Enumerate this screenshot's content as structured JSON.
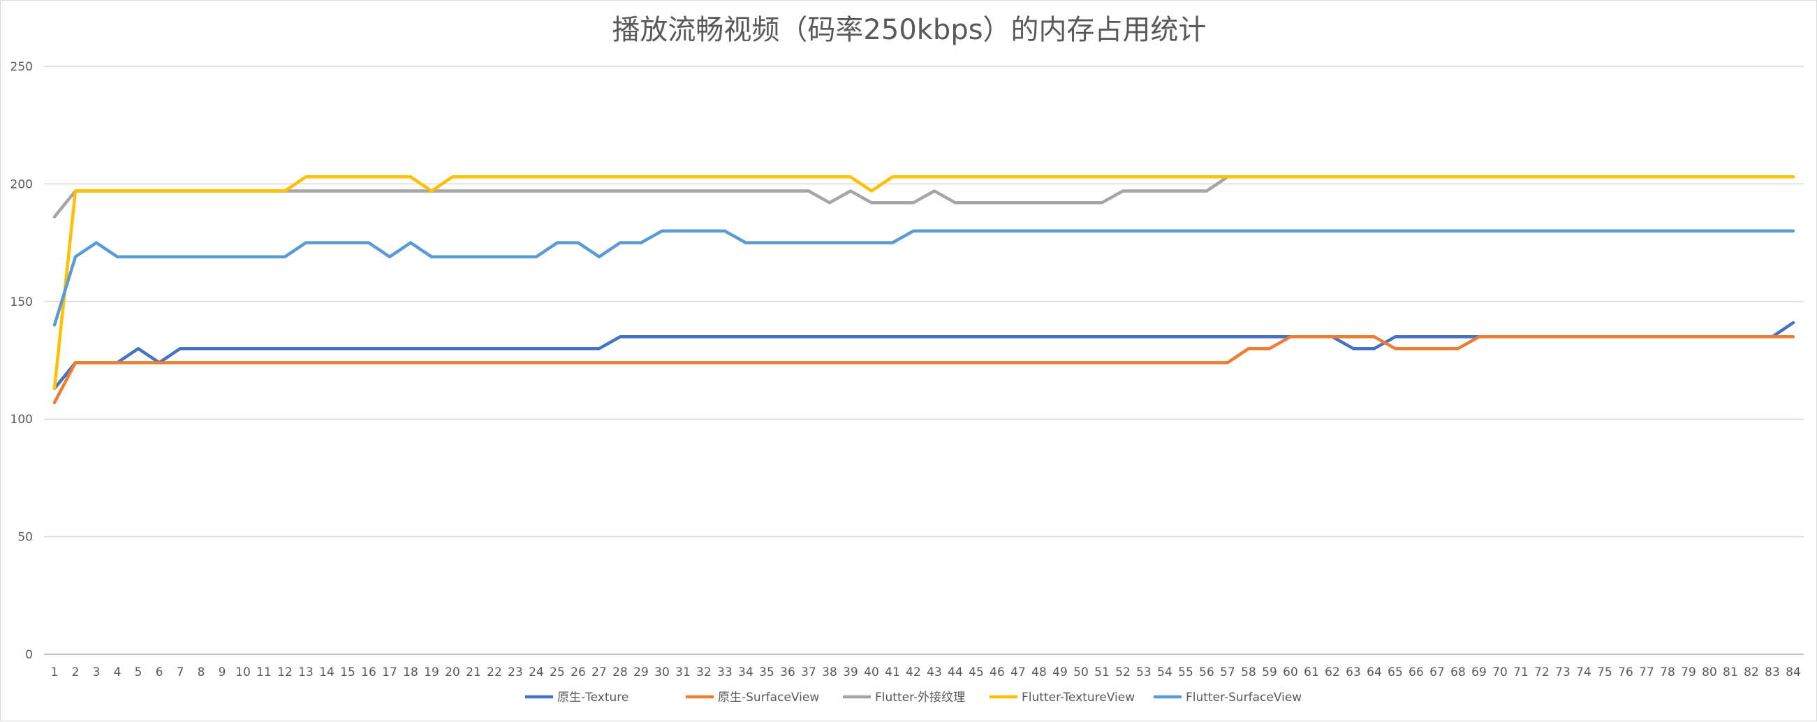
{
  "chart_data": {
    "type": "line",
    "title": "播放流畅视频（码率250kbps）的内存占用统计",
    "xlabel": "",
    "ylabel": "",
    "ylim": [
      0,
      250
    ],
    "yticks": [
      "0",
      "50",
      "100",
      "150",
      "200",
      "250"
    ],
    "grid": true,
    "legend_position": "bottom",
    "categories": [
      "1",
      "2",
      "3",
      "4",
      "5",
      "6",
      "7",
      "8",
      "9",
      "10",
      "11",
      "12",
      "13",
      "14",
      "15",
      "16",
      "17",
      "18",
      "19",
      "20",
      "21",
      "22",
      "23",
      "24",
      "25",
      "26",
      "27",
      "28",
      "29",
      "30",
      "31",
      "32",
      "33",
      "34",
      "35",
      "36",
      "37",
      "38",
      "39",
      "40",
      "41",
      "42",
      "43",
      "44",
      "45",
      "46",
      "47",
      "48",
      "49",
      "50",
      "51",
      "52",
      "53",
      "54",
      "55",
      "56",
      "57",
      "58",
      "59",
      "60",
      "61",
      "62",
      "63",
      "64",
      "65",
      "66",
      "67",
      "68",
      "69",
      "70",
      "71",
      "72",
      "73",
      "74",
      "75",
      "76",
      "77",
      "78",
      "79",
      "80",
      "81",
      "82",
      "83",
      "84"
    ],
    "series": [
      {
        "name": "原生-Texture",
        "color": "#4472c4",
        "values": [
          113,
          124,
          124,
          124,
          130,
          124,
          130,
          130,
          130,
          130,
          130,
          130,
          130,
          130,
          130,
          130,
          130,
          130,
          130,
          130,
          130,
          130,
          130,
          130,
          130,
          130,
          130,
          135,
          135,
          135,
          135,
          135,
          135,
          135,
          135,
          135,
          135,
          135,
          135,
          135,
          135,
          135,
          135,
          135,
          135,
          135,
          135,
          135,
          135,
          135,
          135,
          135,
          135,
          135,
          135,
          135,
          135,
          135,
          135,
          135,
          135,
          135,
          130,
          130,
          135,
          135,
          135,
          135,
          135,
          135,
          135,
          135,
          135,
          135,
          135,
          135,
          135,
          135,
          135,
          135,
          135,
          135,
          135,
          141
        ]
      },
      {
        "name": "原生-SurfaceView",
        "color": "#ed7d31",
        "values": [
          107,
          124,
          124,
          124,
          124,
          124,
          124,
          124,
          124,
          124,
          124,
          124,
          124,
          124,
          124,
          124,
          124,
          124,
          124,
          124,
          124,
          124,
          124,
          124,
          124,
          124,
          124,
          124,
          124,
          124,
          124,
          124,
          124,
          124,
          124,
          124,
          124,
          124,
          124,
          124,
          124,
          124,
          124,
          124,
          124,
          124,
          124,
          124,
          124,
          124,
          124,
          124,
          124,
          124,
          124,
          124,
          124,
          130,
          130,
          135,
          135,
          135,
          135,
          135,
          130,
          130,
          130,
          130,
          135,
          135,
          135,
          135,
          135,
          135,
          135,
          135,
          135,
          135,
          135,
          135,
          135,
          135,
          135,
          135
        ]
      },
      {
        "name": "Flutter-外接纹理",
        "color": "#a5a5a5",
        "values": [
          186,
          197,
          197,
          197,
          197,
          197,
          197,
          197,
          197,
          197,
          197,
          197,
          197,
          197,
          197,
          197,
          197,
          197,
          197,
          197,
          197,
          197,
          197,
          197,
          197,
          197,
          197,
          197,
          197,
          197,
          197,
          197,
          197,
          197,
          197,
          197,
          197,
          192,
          197,
          192,
          192,
          192,
          197,
          192,
          192,
          192,
          192,
          192,
          192,
          192,
          192,
          197,
          197,
          197,
          197,
          197,
          203,
          203,
          203,
          203,
          203,
          203,
          203,
          203,
          203,
          203,
          203,
          203,
          203,
          203,
          203,
          203,
          203,
          203,
          203,
          203,
          203,
          203,
          203,
          203,
          203,
          203,
          203,
          203
        ]
      },
      {
        "name": "Flutter-TextureView",
        "color": "#ffc000",
        "values": [
          113,
          197,
          197,
          197,
          197,
          197,
          197,
          197,
          197,
          197,
          197,
          197,
          203,
          203,
          203,
          203,
          203,
          203,
          197,
          203,
          203,
          203,
          203,
          203,
          203,
          203,
          203,
          203,
          203,
          203,
          203,
          203,
          203,
          203,
          203,
          203,
          203,
          203,
          203,
          197,
          203,
          203,
          203,
          203,
          203,
          203,
          203,
          203,
          203,
          203,
          203,
          203,
          203,
          203,
          203,
          203,
          203,
          203,
          203,
          203,
          203,
          203,
          203,
          203,
          203,
          203,
          203,
          203,
          203,
          203,
          203,
          203,
          203,
          203,
          203,
          203,
          203,
          203,
          203,
          203,
          203,
          203,
          203,
          203
        ]
      },
      {
        "name": "Flutter-SurfaceView",
        "color": "#5b9bd5",
        "values": [
          140,
          169,
          175,
          169,
          169,
          169,
          169,
          169,
          169,
          169,
          169,
          169,
          175,
          175,
          175,
          175,
          169,
          175,
          169,
          169,
          169,
          169,
          169,
          169,
          175,
          175,
          169,
          175,
          175,
          180,
          180,
          180,
          180,
          175,
          175,
          175,
          175,
          175,
          175,
          175,
          175,
          180,
          180,
          180,
          180,
          180,
          180,
          180,
          180,
          180,
          180,
          180,
          180,
          180,
          180,
          180,
          180,
          180,
          180,
          180,
          180,
          180,
          180,
          180,
          180,
          180,
          180,
          180,
          180,
          180,
          180,
          180,
          180,
          180,
          180,
          180,
          180,
          180,
          180,
          180,
          180,
          180,
          180,
          180
        ]
      }
    ]
  }
}
